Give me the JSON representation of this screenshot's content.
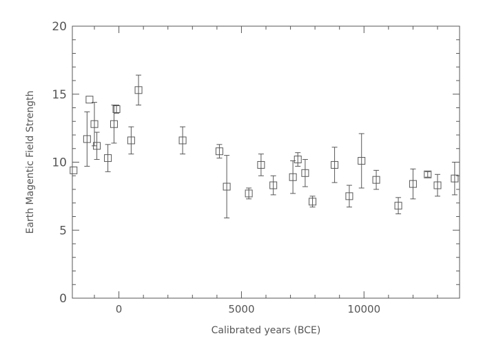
{
  "chart_data": {
    "type": "scatter",
    "title": "",
    "xlabel": "Calibrated years (BCE)",
    "ylabel": "Earth Magentic Field Strength",
    "xlim": [
      -1900,
      13900
    ],
    "ylim": [
      0,
      20
    ],
    "x_ticks": [
      0,
      5000,
      10000
    ],
    "x_tick_labels": [
      "0",
      "5000",
      "10000"
    ],
    "y_ticks": [
      0,
      5,
      10,
      15,
      20
    ],
    "y_tick_labels": [
      "0",
      "5",
      "10",
      "15",
      "20"
    ],
    "grid": false,
    "marker": "open-square",
    "color": "#555555",
    "points": [
      {
        "x": -1850,
        "y": 9.4,
        "lo": 9.4,
        "hi": 9.4
      },
      {
        "x": -1300,
        "y": 11.7,
        "lo": 9.7,
        "hi": 13.7
      },
      {
        "x": -1200,
        "y": 14.6,
        "lo": 14.6,
        "hi": 14.6
      },
      {
        "x": -1000,
        "y": 12.8,
        "lo": 11.2,
        "hi": 14.4
      },
      {
        "x": -900,
        "y": 11.2,
        "lo": 10.2,
        "hi": 12.2
      },
      {
        "x": -450,
        "y": 10.3,
        "lo": 9.3,
        "hi": 11.3
      },
      {
        "x": -200,
        "y": 12.8,
        "lo": 11.4,
        "hi": 14.2
      },
      {
        "x": -100,
        "y": 13.9,
        "lo": 13.6,
        "hi": 14.2
      },
      {
        "x": 500,
        "y": 11.6,
        "lo": 10.6,
        "hi": 12.6
      },
      {
        "x": 800,
        "y": 15.3,
        "lo": 14.2,
        "hi": 16.4
      },
      {
        "x": 2600,
        "y": 11.6,
        "lo": 10.6,
        "hi": 12.6
      },
      {
        "x": 4100,
        "y": 10.8,
        "lo": 10.3,
        "hi": 11.3
      },
      {
        "x": 4400,
        "y": 8.2,
        "lo": 5.9,
        "hi": 10.5
      },
      {
        "x": 5300,
        "y": 7.7,
        "lo": 7.3,
        "hi": 8.1
      },
      {
        "x": 5800,
        "y": 9.8,
        "lo": 9.0,
        "hi": 10.6
      },
      {
        "x": 6300,
        "y": 8.3,
        "lo": 7.6,
        "hi": 9.0
      },
      {
        "x": 7100,
        "y": 8.9,
        "lo": 7.7,
        "hi": 10.1
      },
      {
        "x": 7300,
        "y": 10.2,
        "lo": 9.7,
        "hi": 10.7
      },
      {
        "x": 7600,
        "y": 9.2,
        "lo": 8.2,
        "hi": 10.2
      },
      {
        "x": 7900,
        "y": 7.1,
        "lo": 6.7,
        "hi": 7.5
      },
      {
        "x": 8800,
        "y": 9.8,
        "lo": 8.5,
        "hi": 11.1
      },
      {
        "x": 9400,
        "y": 7.5,
        "lo": 6.7,
        "hi": 8.3
      },
      {
        "x": 9900,
        "y": 10.1,
        "lo": 8.1,
        "hi": 12.1
      },
      {
        "x": 10500,
        "y": 8.7,
        "lo": 8.0,
        "hi": 9.4
      },
      {
        "x": 11400,
        "y": 6.8,
        "lo": 6.2,
        "hi": 7.4
      },
      {
        "x": 12000,
        "y": 8.4,
        "lo": 7.3,
        "hi": 9.5
      },
      {
        "x": 12600,
        "y": 9.1,
        "lo": 8.9,
        "hi": 9.3
      },
      {
        "x": 13000,
        "y": 8.3,
        "lo": 7.5,
        "hi": 9.1
      },
      {
        "x": 13700,
        "y": 8.8,
        "lo": 7.6,
        "hi": 10.0
      }
    ]
  }
}
